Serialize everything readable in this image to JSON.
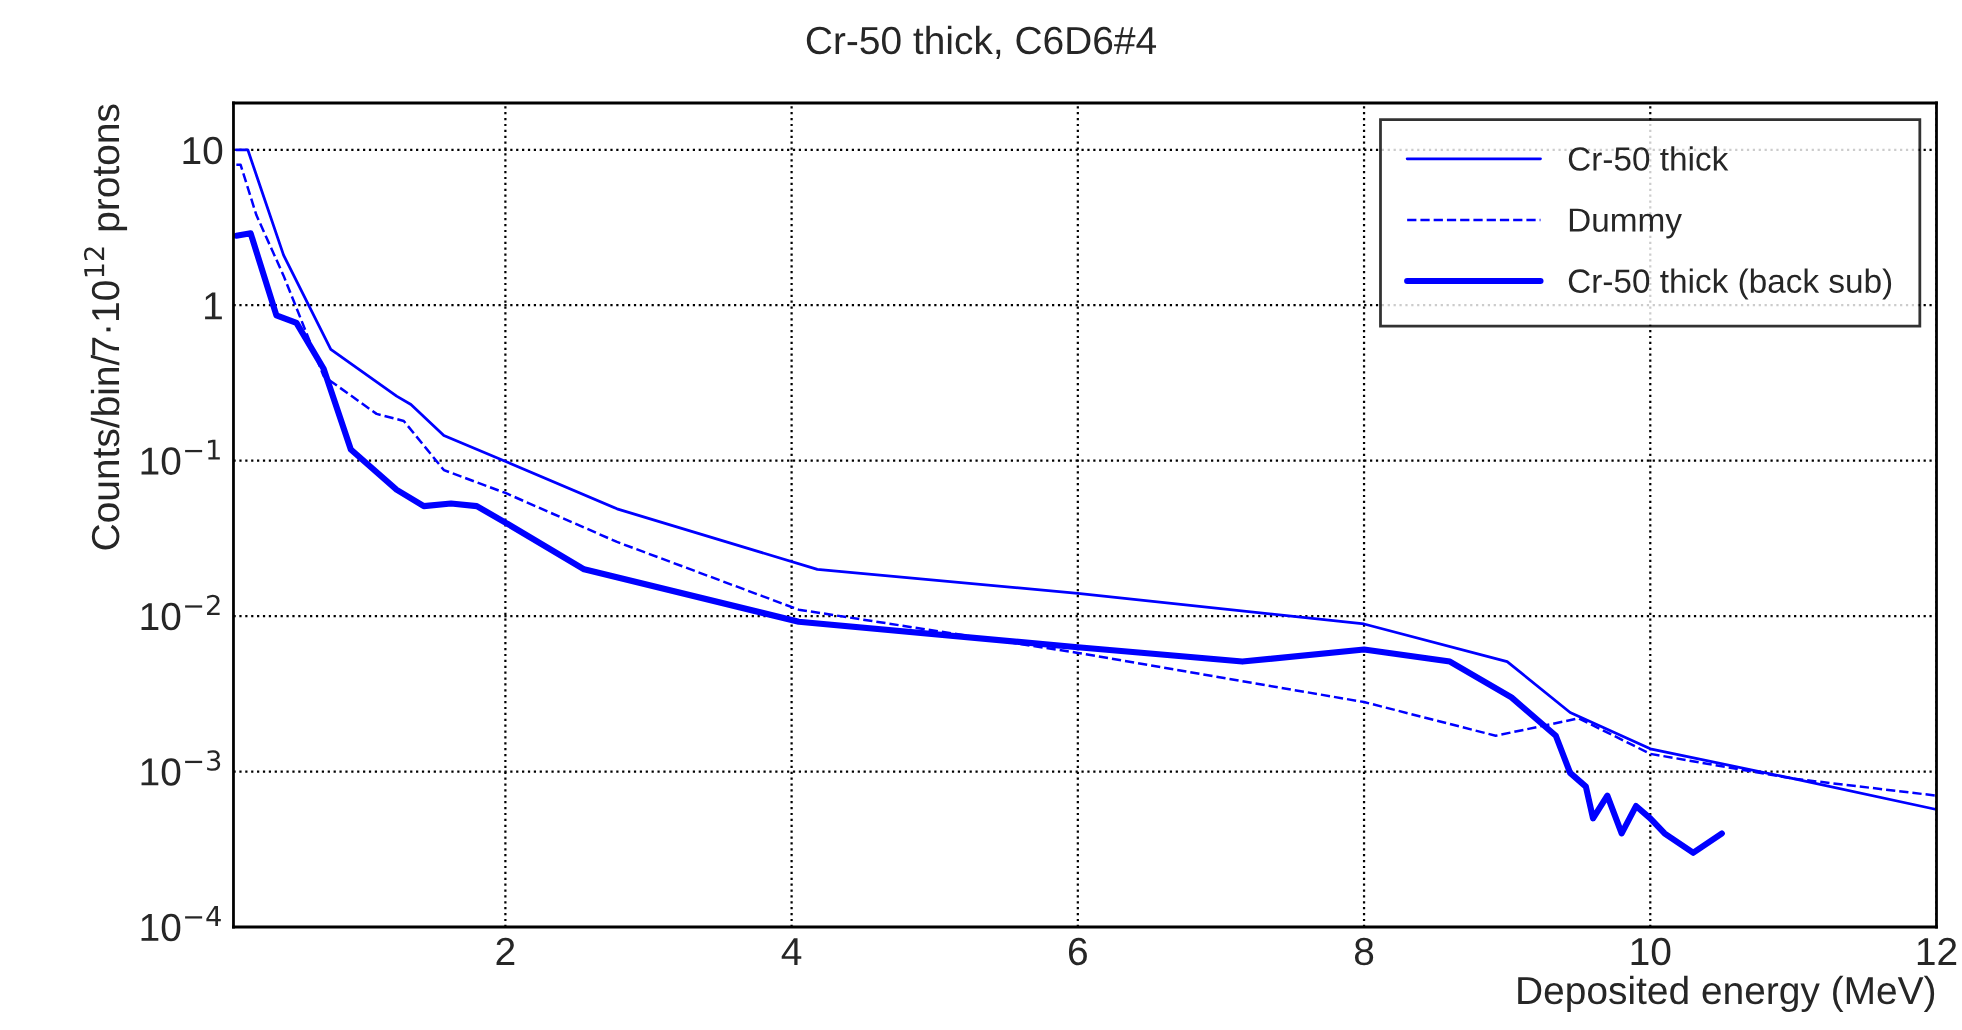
{
  "chart_data": {
    "type": "line",
    "title": "Cr-50 thick, C6D6#4",
    "xlabel": "Deposited energy (MeV)",
    "ylabel": "Counts/bin/7·10$^{12}$ protons",
    "log": "y",
    "grid": true,
    "legend": "top right",
    "xlim": [
      0.1,
      12
    ],
    "xticks": [
      2,
      4,
      6,
      8,
      10,
      12
    ],
    "ylim": [
      0.0001,
      20
    ],
    "yticks": [
      {
        "value": 0.0001,
        "label": "10$^{−4}$"
      },
      {
        "value": 0.001,
        "label": "10$^{−3}$"
      },
      {
        "value": 0.01,
        "label": "10$^{−2}$"
      },
      {
        "value": 0.1,
        "label": "10$^{−1}$"
      },
      {
        "value": 1,
        "label": "1"
      },
      {
        "value": 10,
        "label": "10"
      }
    ],
    "series": [
      {
        "name": "Cr-50 thick",
        "color": "#0000ff",
        "line_style": "solid",
        "x": [
          0.12,
          0.2,
          0.45,
          0.78,
          1.24,
          1.34,
          1.57,
          1.99,
          2.78,
          4.18,
          6.0,
          8.0,
          9.0,
          9.44,
          10.0,
          11.0,
          12.0
        ],
        "values": [
          10,
          10,
          2.1,
          0.52,
          0.26,
          0.23,
          0.145,
          0.1,
          0.049,
          0.02,
          0.014,
          0.0089,
          0.0051,
          0.0024,
          0.0014,
          0.0009,
          0.00057
        ]
      },
      {
        "name": "Dummy",
        "color": "#0000ff",
        "line_style": "dashed",
        "x": [
          0.12,
          0.15,
          0.26,
          0.45,
          0.73,
          1.1,
          1.29,
          1.57,
          2.0,
          2.78,
          4.05,
          6.0,
          8.0,
          8.92,
          9.5,
          10.0,
          11.0,
          12.0
        ],
        "values": [
          8,
          8,
          3.8,
          1.55,
          0.35,
          0.2,
          0.18,
          0.087,
          0.062,
          0.03,
          0.011,
          0.0058,
          0.0028,
          0.0017,
          0.0022,
          0.0013,
          0.0009,
          0.0007
        ]
      },
      {
        "name": "Cr-50 thick (back sub)",
        "color": "#0000ff",
        "line_style": "solid",
        "x": [
          0.12,
          0.22,
          0.4,
          0.54,
          0.73,
          0.92,
          1.24,
          1.43,
          1.62,
          1.8,
          2.0,
          2.55,
          4.05,
          6.0,
          7.15,
          8.0,
          8.6,
          9.03,
          9.34,
          9.44,
          9.55,
          9.6,
          9.7,
          9.8,
          9.9,
          10.0,
          10.1,
          10.3,
          10.5
        ],
        "values": [
          2.8,
          2.9,
          0.86,
          0.77,
          0.39,
          0.118,
          0.065,
          0.051,
          0.053,
          0.051,
          0.04,
          0.02,
          0.0092,
          0.0063,
          0.0051,
          0.0061,
          0.0051,
          0.003,
          0.0017,
          0.00098,
          0.0008,
          0.0005,
          0.0007,
          0.0004,
          0.0006,
          0.0005,
          0.0004,
          0.0003,
          0.0004
        ]
      }
    ]
  }
}
